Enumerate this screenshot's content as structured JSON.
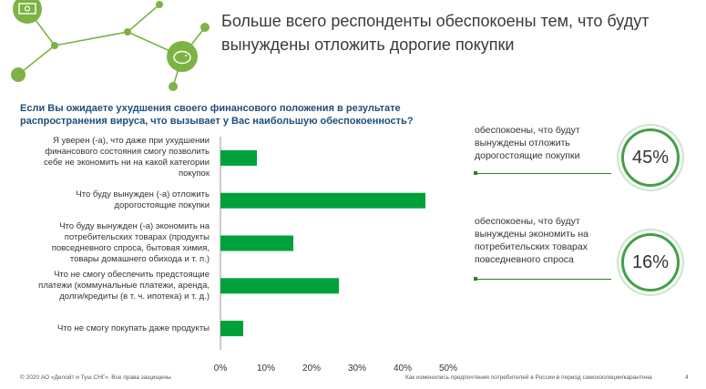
{
  "header": {
    "title": "Больше всего респонденты обеспокоены тем, что будут вынуждены отложить дорогие покупки",
    "question": "Если Вы ожидаете ухудшения своего финансового положения в результате распространения вируса, что вызывает у Вас наибольшую обеспокоенность?"
  },
  "decoration": {
    "icons": [
      "money-icon",
      "piggy-bank-icon"
    ],
    "accent_color": "#7cb342"
  },
  "chart_data": {
    "type": "bar",
    "orientation": "horizontal",
    "categories": [
      "Я уверен (-а), что даже при ухудшении финансового состояния смогу позволить себе не экономить ни на какой категории покупок",
      "Что буду вынужден (-а) отложить дорогостоящие покупки",
      "Что буду вынужден (-а) экономить на потребительских товарах (продукты повседневного спроса, бытовая химия, товары домашнего обихода и т. п.)",
      "Что не смогу обеспечить предстоящие платежи (коммунальные платежи, аренда, долги/кредиты (в т. ч. ипотека) и т. д.)",
      "Что не смогу покупать даже продукты"
    ],
    "values": [
      8,
      45,
      16,
      26,
      5
    ],
    "xlim": [
      0,
      50
    ],
    "xticks": [
      "0%",
      "10%",
      "20%",
      "30%",
      "40%",
      "50%"
    ],
    "bar_color": "#00a13a",
    "grid": false
  },
  "callouts": [
    {
      "text": "обеспокоены, что будут вынуждены отложить дорогостоящие покупки",
      "value": "45%"
    },
    {
      "text": "обеспокоены, что будут вынуждены экономить на потребительских товарах повседневного спроса",
      "value": "16%"
    }
  ],
  "footer": {
    "copyright": "© 2020 АО «Делойт и Туш СНГ». Все права защищены.",
    "subtitle": "Как изменились предпочтения потребителей в России в период самоизоляции/карантина",
    "page": "4"
  }
}
